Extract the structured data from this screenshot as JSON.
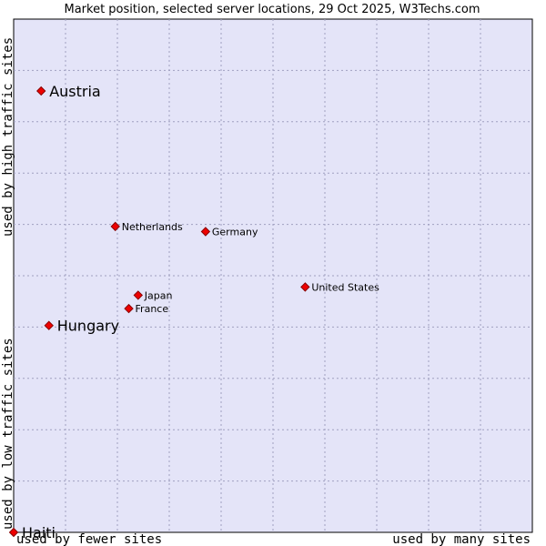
{
  "chart_data": {
    "type": "scatter",
    "title": "Market position, selected server locations, 29 Oct 2025, W3Techs.com",
    "xlabel_left": "used by fewer sites",
    "xlabel_right": "used by many sites",
    "ylabel_top": "used by high traffic sites",
    "ylabel_bottom": "used by low traffic sites",
    "xlim": [
      0,
      100
    ],
    "ylim": [
      0,
      100
    ],
    "grid": true,
    "points": [
      {
        "name": "Austria",
        "x": 5.3,
        "y": 86.0,
        "size": "big"
      },
      {
        "name": "Netherlands",
        "x": 19.6,
        "y": 59.6,
        "size": "small"
      },
      {
        "name": "Germany",
        "x": 37.0,
        "y": 58.6,
        "size": "small"
      },
      {
        "name": "United States",
        "x": 56.2,
        "y": 47.8,
        "size": "small"
      },
      {
        "name": "Japan",
        "x": 24.0,
        "y": 46.2,
        "size": "small"
      },
      {
        "name": "France",
        "x": 22.2,
        "y": 43.6,
        "size": "small"
      },
      {
        "name": "Hungary",
        "x": 6.8,
        "y": 40.3,
        "size": "big"
      },
      {
        "name": "Haiti",
        "x": 0.0,
        "y": 0.0,
        "size": "big"
      }
    ]
  }
}
